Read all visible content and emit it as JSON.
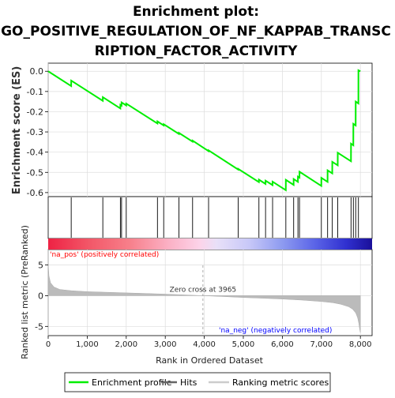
{
  "chart_data": {
    "type": "line",
    "title_lines": [
      "Enrichment plot:",
      "GO_POSITIVE_REGULATION_OF_NF_KAPPAB_TRANSC",
      "RIPTION_FACTOR_ACTIVITY"
    ],
    "xlabel": "Rank in Ordered Dataset",
    "es_ylabel": "Enrichment score (ES)",
    "metric_ylabel": "Ranked list metric (PreRanked)",
    "xlim": [
      0,
      8300
    ],
    "x_ticks": [
      0,
      1000,
      2000,
      3000,
      4000,
      5000,
      6000,
      7000,
      8000
    ],
    "x_tick_labels": [
      "0",
      "1,000",
      "2,000",
      "3,000",
      "4,000",
      "5,000",
      "6,000",
      "7,000",
      "8,000"
    ],
    "es_ylim": [
      -0.62,
      0.04
    ],
    "es_ticks": [
      0.0,
      -0.1,
      -0.2,
      -0.3,
      -0.4,
      -0.5,
      -0.6
    ],
    "es_tick_labels": [
      "0.0",
      "-0.1",
      "-0.2",
      "-0.3",
      "-0.4",
      "-0.5",
      "-0.6"
    ],
    "metric_ylim": [
      -6.5,
      7.5
    ],
    "metric_ticks": [
      5,
      0,
      -5
    ],
    "metric_tick_labels": [
      "5",
      "0",
      "-5"
    ],
    "hits": [
      590,
      1400,
      1850,
      1880,
      2000,
      2800,
      2960,
      3350,
      3700,
      4110,
      4870,
      5400,
      5570,
      5750,
      6090,
      6290,
      6400,
      6440,
      7000,
      7160,
      7280,
      7420,
      7760,
      7820,
      7880,
      7950
    ],
    "series": [
      {
        "name": "Enrichment profile",
        "color": "#00ee00",
        "x": [
          0,
          589,
          590,
          1399,
          1400,
          1849,
          1850,
          1879,
          1880,
          1999,
          2000,
          2799,
          2800,
          2959,
          2960,
          3349,
          3350,
          3699,
          3700,
          4109,
          4110,
          4869,
          4870,
          5399,
          5400,
          5569,
          5570,
          5749,
          5750,
          6089,
          6090,
          6289,
          6290,
          6399,
          6400,
          6439,
          6440,
          6999,
          7000,
          7159,
          7160,
          7279,
          7280,
          7419,
          7420,
          7759,
          7760,
          7819,
          7820,
          7879,
          7880,
          7949,
          7950,
          8000
        ],
        "y": [
          0.0,
          -0.073,
          -0.046,
          -0.146,
          -0.128,
          -0.184,
          -0.166,
          -0.17,
          -0.154,
          -0.169,
          -0.16,
          -0.258,
          -0.248,
          -0.268,
          -0.262,
          -0.31,
          -0.305,
          -0.348,
          -0.343,
          -0.395,
          -0.391,
          -0.486,
          -0.483,
          -0.548,
          -0.536,
          -0.557,
          -0.541,
          -0.563,
          -0.546,
          -0.588,
          -0.537,
          -0.562,
          -0.533,
          -0.547,
          -0.521,
          -0.526,
          -0.497,
          -0.567,
          -0.527,
          -0.547,
          -0.49,
          -0.505,
          -0.448,
          -0.465,
          -0.403,
          -0.445,
          -0.358,
          -0.366,
          -0.26,
          -0.268,
          -0.15,
          -0.159,
          0.005,
          0.0
        ]
      },
      {
        "name": "Ranking metric scores",
        "color": "#bbbbbb",
        "x": [
          0,
          20,
          60,
          150,
          300,
          600,
          1000,
          1500,
          2000,
          2500,
          3000,
          3500,
          3965,
          4500,
          5000,
          5500,
          6000,
          6500,
          7000,
          7300,
          7500,
          7700,
          7800,
          7880,
          7930,
          7960,
          7980,
          8000
        ],
        "y": [
          5.2,
          3.2,
          2.1,
          1.4,
          1.0,
          0.8,
          0.65,
          0.55,
          0.45,
          0.35,
          0.25,
          0.12,
          0.0,
          -0.15,
          -0.3,
          -0.42,
          -0.55,
          -0.72,
          -0.95,
          -1.15,
          -1.4,
          -1.8,
          -2.2,
          -2.8,
          -3.6,
          -4.5,
          -5.4,
          -6.0
        ]
      }
    ],
    "hits_label": "Hits",
    "hits_color": "#000000",
    "pos_label": "'na_pos' (positively correlated)",
    "neg_label": "'na_neg' (negatively correlated)",
    "pos_label_color": "#ff0000",
    "neg_label_color": "#0000ff",
    "zero_cross_label": "Zero cross at 3965",
    "zero_cross": 3965,
    "legend_position": "bottom",
    "grid": true
  }
}
